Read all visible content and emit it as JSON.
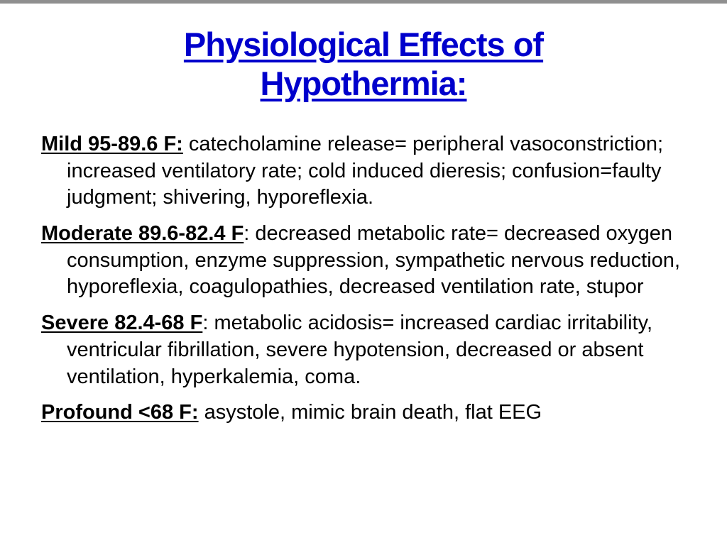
{
  "slide": {
    "title_line1": "Physiological Effects of",
    "title_line2": "Hypothermia:",
    "title_color": "#0000cc",
    "background_color": "#ffffff",
    "bullets": [
      {
        "lead": "Mild 95-89.6 F:",
        "body": " catecholamine release= peripheral vasoconstriction; increased ventilatory rate; cold induced dieresis; confusion=faulty judgment; shivering, hyporeflexia."
      },
      {
        "lead": "Moderate 89.6-82.4 F",
        "body": ":  decreased metabolic rate= decreased oxygen consumption, enzyme suppression, sympathetic nervous reduction, hyporeflexia, coagulopathies, decreased ventilation rate, stupor"
      },
      {
        "lead": "Severe 82.4-68 F",
        "body": ":  metabolic acidosis= increased cardiac irritability, ventricular fibrillation, severe hypotension, decreased or absent ventilation, hyperkalemia, coma."
      },
      {
        "lead": "Profound <68 F:",
        "body": "   asystole, mimic brain death, flat EEG"
      }
    ]
  }
}
